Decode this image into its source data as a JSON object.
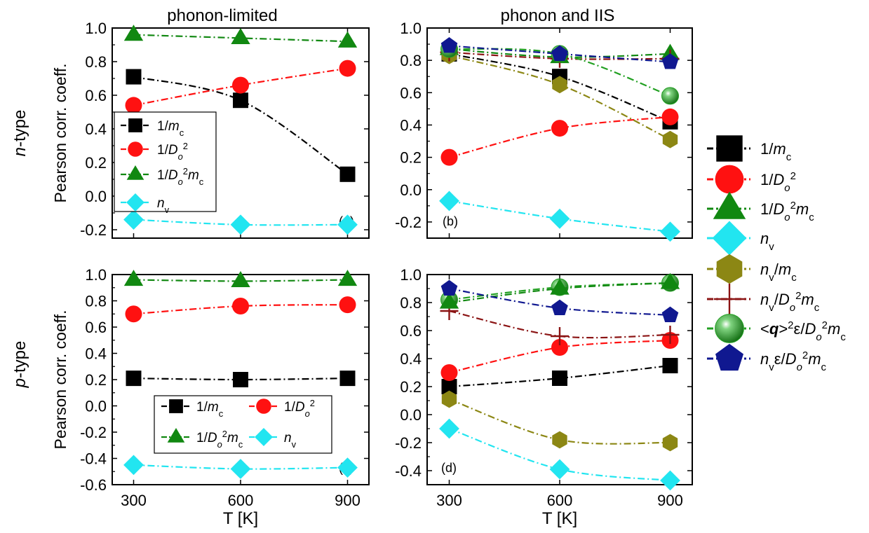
{
  "figure": {
    "col_titles": [
      "phonon-limited",
      "phonon and IIS"
    ],
    "row_labels": [
      {
        "italic": "n",
        "rest": "-type",
        "color": "#2222dd"
      },
      {
        "italic": "p",
        "rest": "-type",
        "color": "#ee2222"
      }
    ],
    "colors": {
      "black": "#000000",
      "red": "#ff1111",
      "green": "#118811",
      "cyan": "#22e5f0",
      "olive": "#8c8714",
      "darkred": "#8b1414",
      "darkgreen": "#22a022",
      "navy": "#101890"
    }
  },
  "chart_data": [
    {
      "type": "line",
      "panel_label": "(a)",
      "xlabel": "",
      "ylabel": "Pearson corr. coeff.",
      "x": [
        300,
        600,
        900
      ],
      "xlim": [
        240,
        960
      ],
      "ylim": [
        -0.25,
        1.0
      ],
      "yticks": [
        "1.0",
        "0.8",
        "0.6",
        "0.4",
        "0.2",
        "0.0",
        "-0.2"
      ],
      "xticks": [
        "",
        "",
        ""
      ],
      "legend": "inside-left",
      "series": [
        {
          "name": "1/m_c",
          "values": [
            0.71,
            0.57,
            0.13
          ],
          "color": "black",
          "marker": "square"
        },
        {
          "name": "1/D_o^2",
          "values": [
            0.54,
            0.66,
            0.76
          ],
          "color": "red",
          "marker": "circle"
        },
        {
          "name": "1/D_o^2 m_c",
          "values": [
            0.96,
            0.94,
            0.92
          ],
          "color": "green",
          "marker": "triangle"
        },
        {
          "name": "n_v",
          "values": [
            -0.14,
            -0.17,
            -0.17
          ],
          "color": "cyan",
          "marker": "diamond"
        }
      ]
    },
    {
      "type": "line",
      "panel_label": "(b)",
      "xlabel": "",
      "ylabel": "",
      "x": [
        300,
        600,
        900
      ],
      "xlim": [
        240,
        960
      ],
      "ylim": [
        -0.3,
        1.0
      ],
      "yticks": [
        "1.0",
        "0.8",
        "0.6",
        "0.4",
        "0.2",
        "0.0",
        "-0.2"
      ],
      "xticks": [
        "",
        "",
        ""
      ],
      "legend": "none",
      "series": [
        {
          "name": "1/m_c",
          "values": [
            0.84,
            0.7,
            0.42
          ],
          "color": "black",
          "marker": "square"
        },
        {
          "name": "1/D_o^2",
          "values": [
            0.2,
            0.38,
            0.45
          ],
          "color": "red",
          "marker": "circle"
        },
        {
          "name": "1/D_o^2 m_c",
          "values": [
            0.87,
            0.82,
            0.84
          ],
          "color": "green",
          "marker": "triangle"
        },
        {
          "name": "n_v",
          "values": [
            -0.07,
            -0.18,
            -0.26
          ],
          "color": "cyan",
          "marker": "diamond"
        },
        {
          "name": "n_v/m_c",
          "values": [
            0.83,
            0.65,
            0.31
          ],
          "color": "olive",
          "marker": "hexagon"
        },
        {
          "name": "n_v/D_o^2 m_c",
          "values": [
            0.85,
            0.81,
            0.81
          ],
          "color": "darkred",
          "marker": "plus"
        },
        {
          "name": "<q>^2 ε/D_o^2 m_c",
          "values": [
            0.87,
            0.84,
            0.58
          ],
          "color": "darkgreen",
          "marker": "sphere"
        },
        {
          "name": "n_v ε/D_o^2 m_c",
          "values": [
            0.89,
            0.84,
            0.79
          ],
          "color": "navy",
          "marker": "pentagon"
        }
      ]
    },
    {
      "type": "line",
      "panel_label": "(c)",
      "xlabel": "T [K]",
      "ylabel": "Pearson corr. coeff.",
      "x": [
        300,
        600,
        900
      ],
      "xlim": [
        240,
        960
      ],
      "ylim": [
        -0.6,
        1.0
      ],
      "yticks": [
        "1.0",
        "0.8",
        "0.6",
        "0.4",
        "0.2",
        "0.0",
        "-0.2",
        "-0.4",
        "-0.6"
      ],
      "xticks": [
        "300",
        "600",
        "900"
      ],
      "legend": "inside-bottom",
      "series": [
        {
          "name": "1/m_c",
          "values": [
            0.21,
            0.2,
            0.21
          ],
          "color": "black",
          "marker": "square"
        },
        {
          "name": "1/D_o^2",
          "values": [
            0.7,
            0.76,
            0.77
          ],
          "color": "red",
          "marker": "circle"
        },
        {
          "name": "1/D_o^2 m_c",
          "values": [
            0.96,
            0.95,
            0.96
          ],
          "color": "green",
          "marker": "triangle"
        },
        {
          "name": "n_v",
          "values": [
            -0.45,
            -0.48,
            -0.47
          ],
          "color": "cyan",
          "marker": "diamond"
        }
      ]
    },
    {
      "type": "line",
      "panel_label": "(d)",
      "xlabel": "T [K]",
      "ylabel": "",
      "x": [
        300,
        600,
        900
      ],
      "xlim": [
        240,
        960
      ],
      "ylim": [
        -0.5,
        1.0
      ],
      "yticks": [
        "1.0",
        "0.8",
        "0.6",
        "0.4",
        "0.2",
        "0.0",
        "-0.2",
        "-0.4"
      ],
      "xticks": [
        "300",
        "600",
        "900"
      ],
      "legend": "right",
      "series": [
        {
          "name": "1/m_c",
          "values": [
            0.2,
            0.26,
            0.35
          ],
          "color": "black",
          "marker": "square"
        },
        {
          "name": "1/D_o^2",
          "values": [
            0.3,
            0.48,
            0.53
          ],
          "color": "red",
          "marker": "circle"
        },
        {
          "name": "n_v",
          "values": [
            -0.1,
            -0.39,
            -0.47
          ],
          "color": "cyan",
          "marker": "diamond"
        },
        {
          "name": "n_v/m_c",
          "values": [
            0.11,
            -0.18,
            -0.2
          ],
          "color": "olive",
          "marker": "hexagon"
        },
        {
          "name": "n_v/D_o^2 m_c",
          "values": [
            0.74,
            0.56,
            0.57
          ],
          "color": "darkred",
          "marker": "plus"
        },
        {
          "name": "<q>^2 ε/D_o^2 m_c",
          "values": [
            0.82,
            0.91,
            0.94
          ],
          "color": "darkgreen",
          "marker": "sphere"
        },
        {
          "name": "1/D_o^2 m_c",
          "values": [
            0.8,
            0.9,
            0.94
          ],
          "color": "green",
          "marker": "triangle"
        },
        {
          "name": "n_v ε/D_o^2 m_c",
          "values": [
            0.9,
            0.76,
            0.71
          ],
          "color": "navy",
          "marker": "pentagon"
        }
      ]
    }
  ],
  "legends": {
    "panel_a": [
      "1/m_c",
      "1/D_o^2",
      "1/D_o^2 m_c",
      "n_v"
    ],
    "panel_c": [
      "1/m_c",
      "1/D_o^2",
      "1/D_o^2 m_c",
      "n_v"
    ],
    "global": [
      {
        "label": "1/m_c",
        "color": "black",
        "marker": "square"
      },
      {
        "label": "1/D_o^2",
        "color": "red",
        "marker": "circle"
      },
      {
        "label": "1/D_o^2 m_c",
        "color": "green",
        "marker": "triangle"
      },
      {
        "label": "n_v",
        "color": "cyan",
        "marker": "diamond"
      },
      {
        "label": "n_v/m_c",
        "color": "olive",
        "marker": "hexagon"
      },
      {
        "label": "n_v/D_o^2 m_c",
        "color": "darkred",
        "marker": "plus"
      },
      {
        "label": "<q>^2 ε/D_o^2 m_c",
        "color": "darkgreen",
        "marker": "sphere"
      },
      {
        "label": "n_v ε/D_o^2 m_c",
        "color": "navy",
        "marker": "pentagon"
      }
    ]
  }
}
